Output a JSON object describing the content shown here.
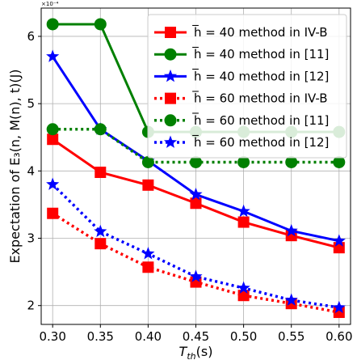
{
  "chart_data": {
    "type": "line",
    "xlabel_main": "T",
    "xlabel_sub": "th",
    "xlabel_unit": "(s)",
    "ylabel": "Expectation of E₃(n, M(n), t)(J)",
    "y_exponent_label": "×10⁻⁴",
    "x": [
      0.3,
      0.35,
      0.4,
      0.45,
      0.5,
      0.55,
      0.6
    ],
    "x_tick_labels": [
      "0.30",
      "0.35",
      "0.40",
      "0.45",
      "0.50",
      "0.55",
      "0.60"
    ],
    "y_ticks": [
      2,
      3,
      4,
      5,
      6
    ],
    "y_tick_labels": [
      "2",
      "3",
      "4",
      "5",
      "6"
    ],
    "xlim": [
      0.288,
      0.612
    ],
    "ylim": [
      1.72,
      6.42
    ],
    "grid": true,
    "legend_position": "top-right",
    "series": [
      {
        "name": "h̅ = 40 method in IV-B",
        "color": "#ff0000",
        "marker": "square",
        "dashed": false,
        "values": [
          4.47,
          3.98,
          3.79,
          3.52,
          3.24,
          3.04,
          2.86
        ]
      },
      {
        "name": "h̅ = 40 method in [11]",
        "color": "#008000",
        "marker": "circle",
        "dashed": false,
        "values": [
          6.18,
          6.18,
          4.58,
          4.58,
          4.58,
          4.58,
          4.58
        ]
      },
      {
        "name": "h̅ = 40 method in [12]",
        "color": "#0000ff",
        "marker": "star",
        "dashed": false,
        "values": [
          5.7,
          4.62,
          4.15,
          3.65,
          3.4,
          3.11,
          2.96
        ]
      },
      {
        "name": "h̅ = 60 method in IV-B",
        "color": "#ff0000",
        "marker": "square",
        "dashed": true,
        "values": [
          3.37,
          2.92,
          2.57,
          2.35,
          2.15,
          2.03,
          1.9
        ]
      },
      {
        "name": "h̅ = 60 method in [11]",
        "color": "#008000",
        "marker": "circle",
        "dashed": true,
        "values": [
          4.62,
          4.62,
          4.13,
          4.13,
          4.13,
          4.13,
          4.13
        ]
      },
      {
        "name": "h̅ = 60 method in [12]",
        "color": "#0000ff",
        "marker": "star",
        "dashed": true,
        "values": [
          3.8,
          3.1,
          2.77,
          2.43,
          2.26,
          2.08,
          1.97
        ]
      }
    ]
  }
}
